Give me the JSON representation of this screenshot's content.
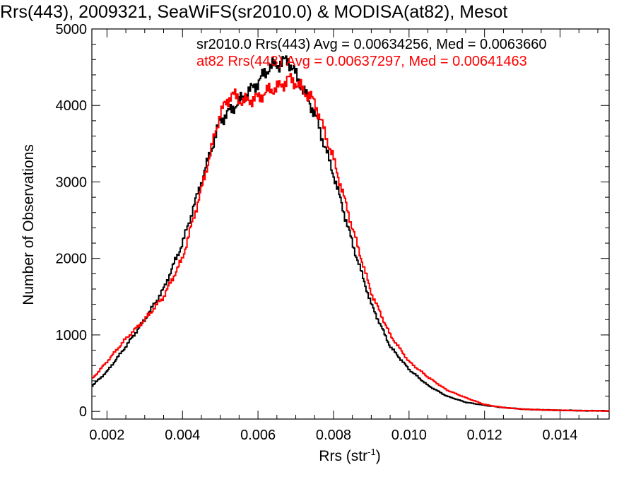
{
  "chart_data": {
    "type": "step-histogram",
    "title": "Rrs(443), 2009321, SeaWiFS(sr2010.0) & MODISA(at82), Mesot",
    "xlabel": "Rrs (str",
    "xlabel_sup": "-1",
    "xlabel_close": ")",
    "ylabel": "Number of Observations",
    "xlim": [
      0.0016,
      0.0153
    ],
    "ylim": [
      -100,
      5000
    ],
    "xticks": [
      0.002,
      0.004,
      0.006,
      0.008,
      0.01,
      0.012,
      0.014
    ],
    "xtick_labels": [
      "0.002",
      "0.004",
      "0.006",
      "0.008",
      "0.010",
      "0.012",
      "0.014"
    ],
    "yticks": [
      0,
      1000,
      2000,
      3000,
      4000,
      5000
    ],
    "ytick_labels": [
      "0",
      "1000",
      "2000",
      "3000",
      "4000",
      "5000"
    ],
    "grid": false,
    "legend_position": "top-right",
    "series": [
      {
        "name": "sr2010.0",
        "color": "#000000",
        "legend": "sr2010.0 Rrs(443) Avg = 0.00634256, Med = 0.0063660",
        "x": [
          0.0016,
          0.002,
          0.0025,
          0.003,
          0.0035,
          0.004,
          0.0045,
          0.005,
          0.0055,
          0.006,
          0.0063,
          0.0066,
          0.0068,
          0.007,
          0.0072,
          0.0075,
          0.008,
          0.0085,
          0.009,
          0.0095,
          0.01,
          0.0105,
          0.011,
          0.0115,
          0.012,
          0.0125,
          0.013,
          0.0135,
          0.014,
          0.0145,
          0.015,
          0.0153
        ],
        "y": [
          330,
          520,
          850,
          1200,
          1600,
          2200,
          3000,
          3800,
          4050,
          4300,
          4500,
          4550,
          4600,
          4400,
          4200,
          3900,
          3100,
          2200,
          1400,
          850,
          550,
          340,
          200,
          120,
          80,
          50,
          30,
          20,
          15,
          10,
          8,
          5
        ]
      },
      {
        "name": "at82",
        "color": "#ff0000",
        "legend": "at82 Rrs(443) Avg = 0.00637297, Med = 0.00641463",
        "x": [
          0.0016,
          0.002,
          0.0025,
          0.003,
          0.0035,
          0.004,
          0.0045,
          0.005,
          0.0053,
          0.0056,
          0.006,
          0.0063,
          0.0066,
          0.0068,
          0.007,
          0.0072,
          0.0075,
          0.008,
          0.0085,
          0.009,
          0.0095,
          0.01,
          0.0105,
          0.011,
          0.0115,
          0.012,
          0.0125,
          0.013,
          0.0135,
          0.014,
          0.0145,
          0.015,
          0.0153
        ],
        "y": [
          420,
          650,
          950,
          1200,
          1500,
          2000,
          2900,
          3900,
          4150,
          4050,
          4100,
          4200,
          4250,
          4350,
          4300,
          4200,
          4050,
          3300,
          2400,
          1550,
          1000,
          650,
          450,
          280,
          180,
          90,
          50,
          30,
          20,
          15,
          10,
          8,
          5
        ]
      }
    ]
  }
}
